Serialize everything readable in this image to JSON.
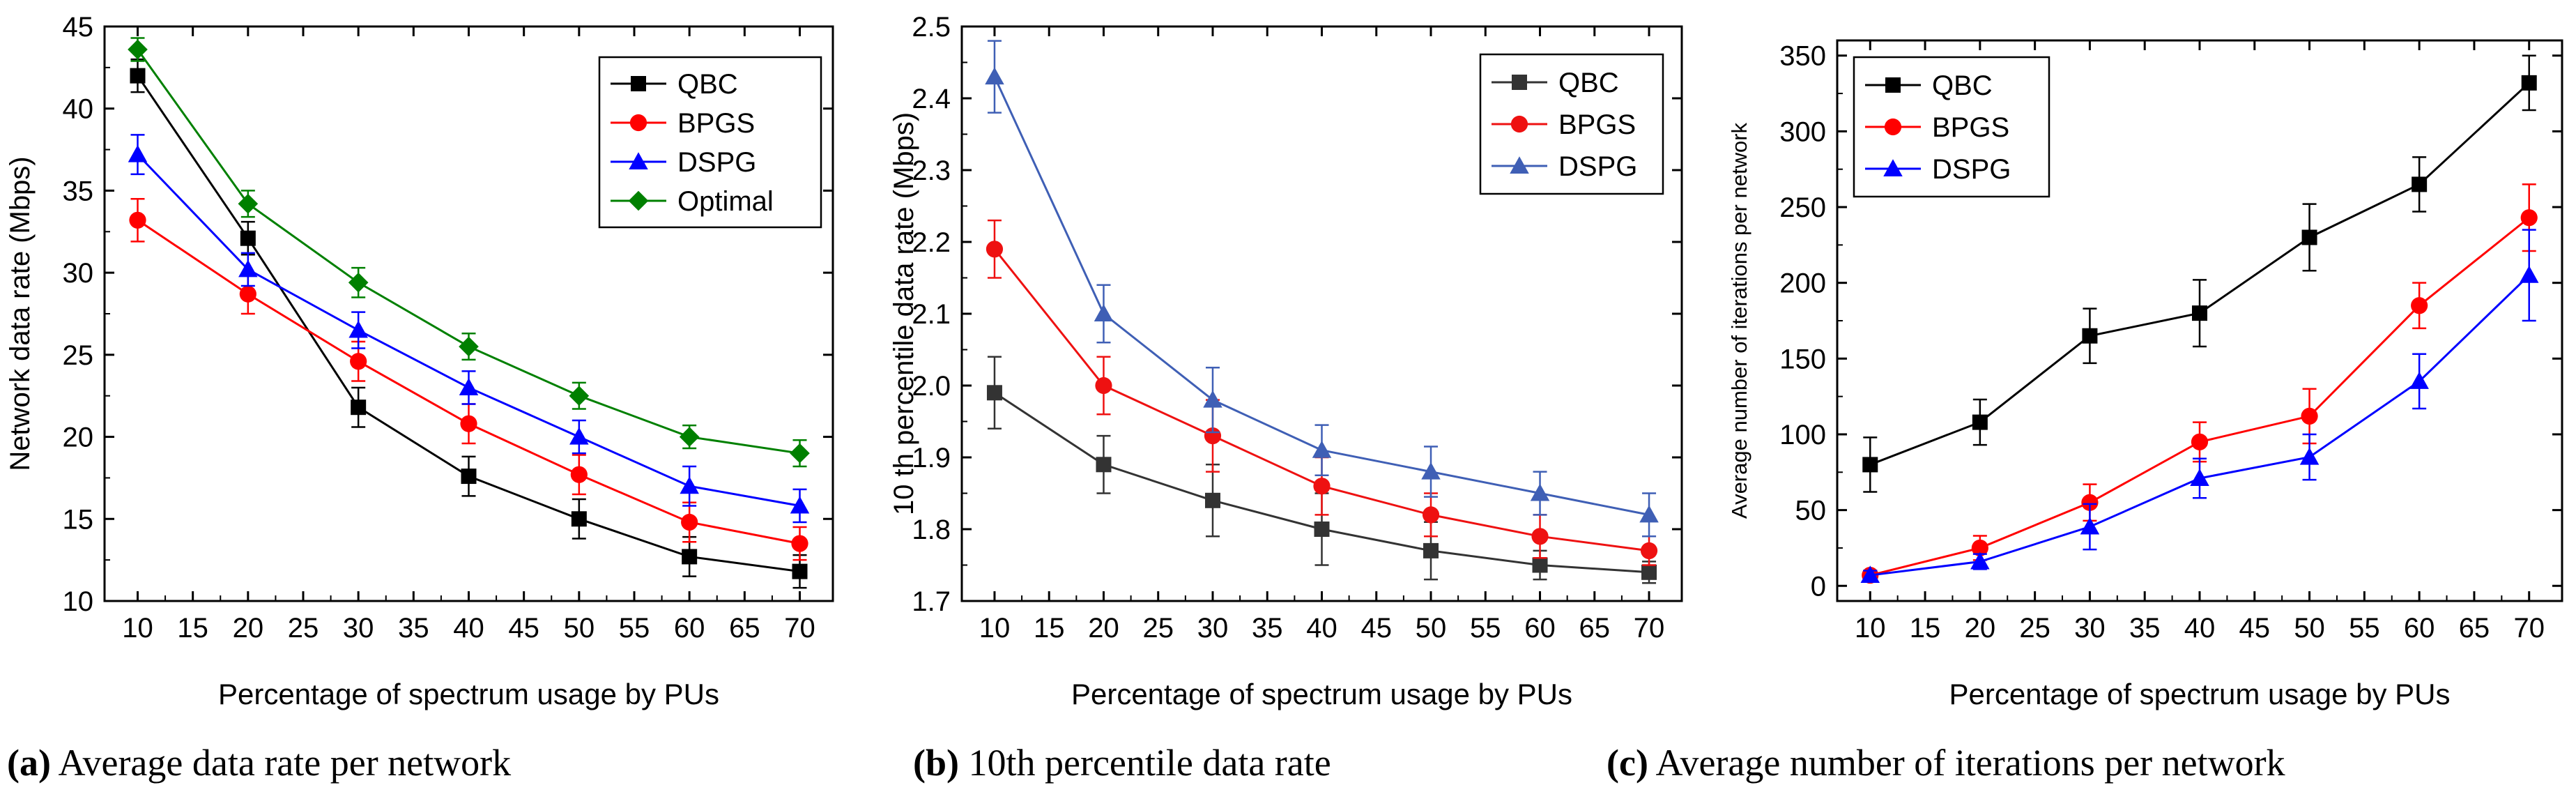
{
  "panels": [
    {
      "type": "line",
      "caption_letter": "(a)",
      "caption_text": " Average data rate per network",
      "xlabel": "Percentage of spectrum usage by PUs",
      "ylabel": "Network data rate (Mbps)",
      "xlim": [
        7,
        73
      ],
      "ylim": [
        10,
        45
      ],
      "xticks": [
        10,
        15,
        20,
        25,
        30,
        35,
        40,
        45,
        50,
        55,
        60,
        65,
        70
      ],
      "yticks": [
        10,
        15,
        20,
        25,
        30,
        35,
        40,
        45
      ],
      "yticks_labels": [
        "10",
        "15",
        "20",
        "25",
        "30",
        "35",
        "40",
        "45"
      ],
      "legend_position": "top-right",
      "x": [
        10,
        20,
        30,
        40,
        50,
        60,
        70
      ],
      "series": [
        {
          "name": "QBC",
          "color": "#000000",
          "marker": "square",
          "values": [
            42.0,
            32.1,
            21.8,
            17.6,
            15.0,
            12.7,
            11.8
          ],
          "errors": [
            1.0,
            1.0,
            1.2,
            1.2,
            1.2,
            1.2,
            1.0
          ]
        },
        {
          "name": "BPGS",
          "color": "#ff0000",
          "marker": "circle",
          "values": [
            33.2,
            28.7,
            24.6,
            20.8,
            17.7,
            14.8,
            13.5
          ],
          "errors": [
            1.3,
            1.2,
            1.2,
            1.2,
            1.2,
            1.2,
            1.0
          ]
        },
        {
          "name": "DSPG",
          "color": "#0000ff",
          "marker": "triangle",
          "values": [
            37.2,
            30.2,
            26.5,
            23.0,
            20.0,
            17.0,
            15.8
          ],
          "errors": [
            1.2,
            1.0,
            1.1,
            1.0,
            1.0,
            1.2,
            1.0
          ]
        },
        {
          "name": "Optimal",
          "color": "#008000",
          "marker": "diamond",
          "values": [
            43.6,
            34.2,
            29.4,
            25.5,
            22.5,
            20.0,
            19.0
          ],
          "errors": [
            0.7,
            0.8,
            0.9,
            0.8,
            0.8,
            0.7,
            0.8
          ]
        }
      ]
    },
    {
      "type": "line",
      "caption_letter": "(b)",
      "caption_text": " 10th percentile data rate",
      "xlabel": "Percentage of spectrum usage by PUs",
      "ylabel": "10 th percentile data rate (Mbps)",
      "xlim": [
        7,
        73
      ],
      "ylim": [
        1.7,
        2.5
      ],
      "xticks": [
        10,
        15,
        20,
        25,
        30,
        35,
        40,
        45,
        50,
        55,
        60,
        65,
        70
      ],
      "yticks": [
        1.7,
        1.8,
        1.9,
        2.0,
        2.1,
        2.2,
        2.3,
        2.4,
        2.5
      ],
      "yticks_labels": [
        "1.7",
        "1.8",
        "1.9",
        "2.0",
        "2.1",
        "2.2",
        "2.3",
        "2.4",
        "2.5"
      ],
      "legend_position": "top-right",
      "x": [
        10,
        20,
        30,
        40,
        50,
        60,
        70
      ],
      "series": [
        {
          "name": "QBC",
          "color": "#333333",
          "marker": "square",
          "values": [
            1.99,
            1.89,
            1.84,
            1.8,
            1.77,
            1.75,
            1.74
          ],
          "errors": [
            0.05,
            0.04,
            0.05,
            0.05,
            0.04,
            0.02,
            0.015
          ]
        },
        {
          "name": "BPGS",
          "color": "#ee1111",
          "marker": "circle",
          "values": [
            2.19,
            2.0,
            1.93,
            1.86,
            1.82,
            1.79,
            1.77
          ],
          "errors": [
            0.04,
            0.04,
            0.05,
            0.04,
            0.03,
            0.03,
            0.02
          ]
        },
        {
          "name": "DSPG",
          "color": "#3f5fb5",
          "marker": "triangle",
          "values": [
            2.43,
            2.1,
            1.98,
            1.91,
            1.88,
            1.85,
            1.82
          ],
          "errors": [
            0.05,
            0.04,
            0.045,
            0.035,
            0.035,
            0.03,
            0.03
          ]
        }
      ]
    },
    {
      "type": "line",
      "caption_letter": "(c)",
      "caption_text": " Average number of iterations per network",
      "xlabel": "Percentage of spectrum usage by PUs",
      "ylabel": "Average number of iterations per network",
      "xlim": [
        7,
        73
      ],
      "ylim": [
        -10,
        360
      ],
      "xticks": [
        10,
        15,
        20,
        25,
        30,
        35,
        40,
        45,
        50,
        55,
        60,
        65,
        70
      ],
      "yticks": [
        0,
        50,
        100,
        150,
        200,
        250,
        300,
        350
      ],
      "yticks_labels": [
        "0",
        "50",
        "100",
        "150",
        "200",
        "250",
        "300",
        "350"
      ],
      "legend_position": "top-left",
      "x": [
        10,
        20,
        30,
        40,
        50,
        60,
        70
      ],
      "series": [
        {
          "name": "QBC",
          "color": "#000000",
          "marker": "square",
          "values": [
            80,
            108,
            165,
            180,
            230,
            265,
            332
          ],
          "errors": [
            18,
            15,
            18,
            22,
            22,
            18,
            18
          ]
        },
        {
          "name": "BPGS",
          "color": "#ff0000",
          "marker": "circle",
          "values": [
            7,
            25,
            55,
            95,
            112,
            185,
            243
          ],
          "errors": [
            3,
            8,
            12,
            13,
            18,
            15,
            22
          ]
        },
        {
          "name": "DSPG",
          "color": "#0000ff",
          "marker": "triangle",
          "values": [
            7,
            16,
            39,
            71,
            85,
            135,
            205
          ],
          "errors": [
            3,
            5,
            15,
            13,
            15,
            18,
            30
          ]
        }
      ]
    }
  ]
}
